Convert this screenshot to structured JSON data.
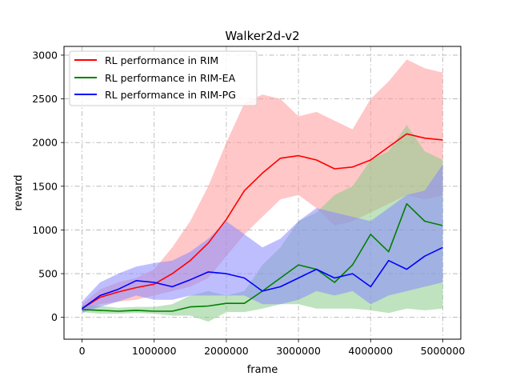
{
  "chart_data": {
    "type": "line",
    "title": "Walker2d-v2",
    "xlabel": "frame",
    "ylabel": "reward",
    "xlim": [
      -250000,
      5250000
    ],
    "ylim": [
      -250,
      3100
    ],
    "xticks": [
      0,
      1000000,
      2000000,
      3000000,
      4000000,
      5000000
    ],
    "xtick_labels": [
      "0",
      "1000000",
      "2000000",
      "3000000",
      "4000000",
      "5000000"
    ],
    "yticks": [
      0,
      500,
      1000,
      1500,
      2000,
      2500,
      3000
    ],
    "ytick_labels": [
      "0",
      "500",
      "1000",
      "1500",
      "2000",
      "2500",
      "3000"
    ],
    "grid": true,
    "legend_position": "top-left",
    "x": [
      0,
      250000,
      500000,
      750000,
      1000000,
      1250000,
      1500000,
      1750000,
      2000000,
      2250000,
      2500000,
      2750000,
      3000000,
      3250000,
      3500000,
      3750000,
      4000000,
      4250000,
      4500000,
      4750000,
      5000000
    ],
    "series": [
      {
        "name": "RL performance in RIM",
        "color": "#ff0000",
        "fill": "#ff9999",
        "values": [
          100,
          230,
          290,
          340,
          380,
          500,
          650,
          850,
          1120,
          1450,
          1650,
          1820,
          1850,
          1800,
          1700,
          1720,
          1800,
          1950,
          2100,
          2050,
          2030
        ],
        "lower": [
          60,
          150,
          180,
          200,
          250,
          300,
          350,
          450,
          700,
          950,
          1150,
          1350,
          1400,
          1250,
          1050,
          1100,
          1200,
          1300,
          1400,
          1350,
          1400
        ],
        "upper": [
          150,
          320,
          400,
          450,
          550,
          800,
          1100,
          1500,
          2000,
          2450,
          2550,
          2500,
          2300,
          2350,
          2250,
          2150,
          2500,
          2700,
          2950,
          2850,
          2800
        ]
      },
      {
        "name": "RL performance in RIM-EA",
        "color": "#008000",
        "fill": "#88cc88",
        "values": [
          90,
          80,
          70,
          80,
          70,
          70,
          120,
          130,
          160,
          160,
          300,
          450,
          600,
          550,
          400,
          600,
          950,
          750,
          1300,
          1100,
          1050
        ],
        "lower": [
          60,
          40,
          40,
          50,
          40,
          20,
          20,
          -50,
          60,
          60,
          100,
          150,
          150,
          100,
          100,
          100,
          80,
          50,
          100,
          80,
          100
        ],
        "upper": [
          140,
          130,
          110,
          120,
          120,
          150,
          250,
          300,
          250,
          300,
          600,
          800,
          1100,
          1200,
          1400,
          1500,
          1800,
          1900,
          2200,
          1900,
          1800
        ]
      },
      {
        "name": "RL performance in RIM-PG",
        "color": "#0000ff",
        "fill": "#8888ff",
        "values": [
          100,
          250,
          320,
          420,
          400,
          350,
          430,
          520,
          500,
          450,
          300,
          350,
          450,
          550,
          450,
          500,
          350,
          650,
          550,
          700,
          800
        ],
        "lower": [
          50,
          120,
          180,
          250,
          200,
          200,
          250,
          250,
          250,
          250,
          150,
          150,
          200,
          300,
          250,
          300,
          150,
          250,
          300,
          350,
          400
        ],
        "upper": [
          180,
          400,
          500,
          580,
          620,
          650,
          750,
          900,
          1100,
          950,
          800,
          900,
          1100,
          1250,
          1200,
          1150,
          1100,
          1250,
          1400,
          1450,
          1750
        ]
      }
    ]
  }
}
